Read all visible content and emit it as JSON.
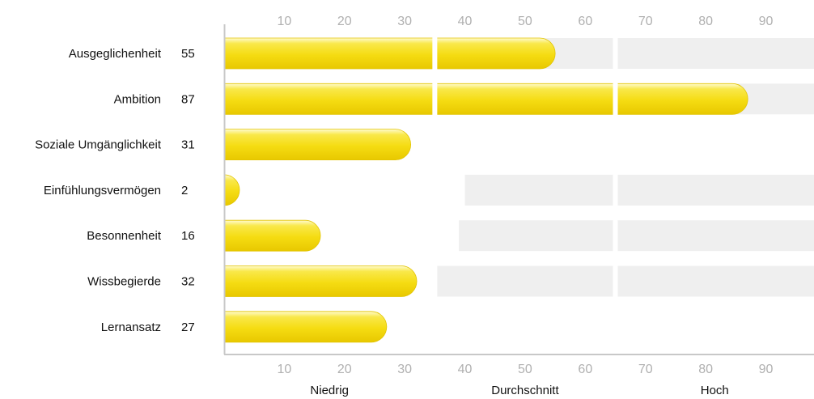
{
  "chart_data": {
    "type": "bar",
    "orientation": "horizontal",
    "categories": [
      "Ausgeglichenheit",
      "Ambition",
      "Soziale Umgänglichkeit",
      "Einfühlungsvermögen",
      "Besonnenheit",
      "Wissbegierde",
      "Lernansatz"
    ],
    "values": [
      55,
      87,
      31,
      2,
      16,
      32,
      27
    ],
    "value_labels": [
      "55",
      "87",
      "31",
      "2",
      "16",
      "32",
      "27"
    ],
    "xlim": [
      0,
      98
    ],
    "xticks": [
      10,
      20,
      30,
      40,
      50,
      60,
      70,
      80,
      90
    ],
    "bands": [
      {
        "label": "Niedrig",
        "from": 0,
        "to": 35
      },
      {
        "label": "Durchschnitt",
        "from": 35,
        "to": 65
      },
      {
        "label": "Hoch",
        "from": 65,
        "to": 98
      }
    ],
    "reference_ranges": [
      {
        "from": 35,
        "to": 98
      },
      {
        "from": 57,
        "to": 98
      },
      null,
      {
        "from": 40,
        "to": 98
      },
      {
        "from": 39,
        "to": 98
      },
      {
        "from": 35,
        "to": 98
      },
      null
    ],
    "grid": false,
    "colors": {
      "bar": "#f5dd1c",
      "bar_highlight": "#fff6a0",
      "bar_edge": "#e2c400",
      "range": "#efefef",
      "axis": "#c8c8c8"
    }
  }
}
